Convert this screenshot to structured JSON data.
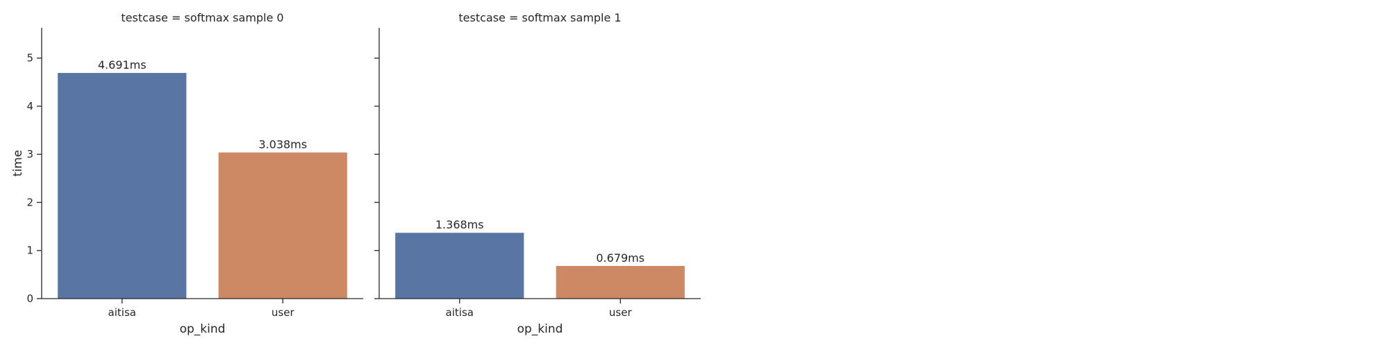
{
  "chart_data": [
    {
      "type": "bar",
      "title": "testcase = softmax sample 0",
      "xlabel": "op_kind",
      "ylabel": "time",
      "categories": [
        "aitisa",
        "user"
      ],
      "values": [
        4.691,
        3.038
      ],
      "value_labels": [
        "4.691ms",
        "3.038ms"
      ],
      "colors": [
        "#5975a4",
        "#cc8963"
      ],
      "ylim": [
        0,
        5.63
      ],
      "yticks": [
        0,
        1,
        2,
        3,
        4,
        5
      ],
      "show_y_tick_labels": true,
      "grid": false
    },
    {
      "type": "bar",
      "title": "testcase = softmax sample 1",
      "xlabel": "op_kind",
      "ylabel": "",
      "categories": [
        "aitisa",
        "user"
      ],
      "values": [
        1.368,
        0.679
      ],
      "value_labels": [
        "1.368ms",
        "0.679ms"
      ],
      "colors": [
        "#5975a4",
        "#cc8963"
      ],
      "ylim": [
        0,
        5.63
      ],
      "yticks": [
        0,
        1,
        2,
        3,
        4,
        5
      ],
      "show_y_tick_labels": false,
      "grid": false
    }
  ]
}
